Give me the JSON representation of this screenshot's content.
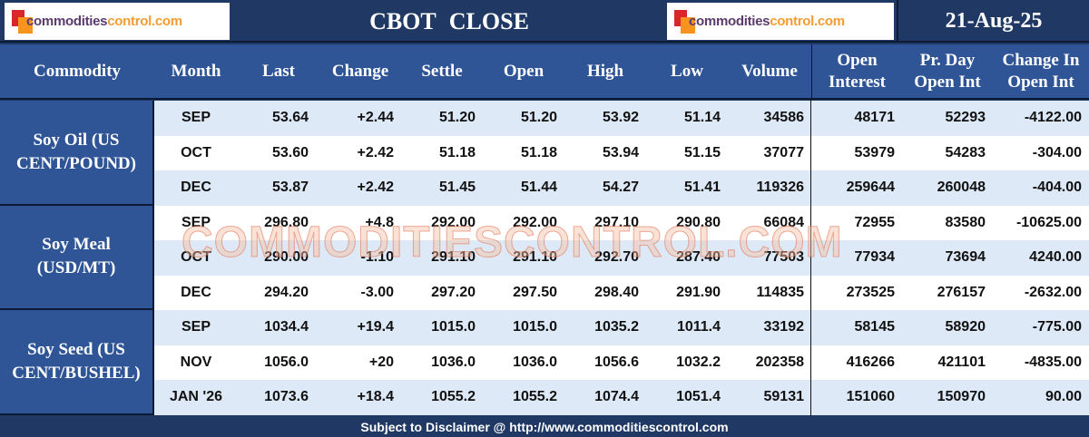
{
  "header": {
    "logo_text_a": "commodities",
    "logo_text_b": "control.com",
    "title": "CBOT  CLOSE",
    "date": "21-Aug-25"
  },
  "columns": [
    "Commodity",
    "Month",
    "Last",
    "Change",
    "Settle",
    "Open",
    "High",
    "Low",
    "Volume",
    "Open Interest",
    "Pr. Day Open Int",
    "Change In Open Int"
  ],
  "groups": [
    {
      "name": "Soy Oil (US CENT/POUND)",
      "rows": [
        [
          "SEP",
          "53.64",
          "+2.44",
          "51.20",
          "51.20",
          "53.92",
          "51.14",
          "34586",
          "48171",
          "52293",
          "-4122.00"
        ],
        [
          "OCT",
          "53.60",
          "+2.42",
          "51.18",
          "51.18",
          "53.94",
          "51.15",
          "37077",
          "53979",
          "54283",
          "-304.00"
        ],
        [
          "DEC",
          "53.87",
          "+2.42",
          "51.45",
          "51.44",
          "54.27",
          "51.41",
          "119326",
          "259644",
          "260048",
          "-404.00"
        ]
      ]
    },
    {
      "name": "Soy Meal (USD/MT)",
      "rows": [
        [
          "SEP",
          "296.80",
          "+4.8",
          "292.00",
          "292.00",
          "297.10",
          "290.80",
          "66084",
          "72955",
          "83580",
          "-10625.00"
        ],
        [
          "OCT",
          "290.00",
          "-1.10",
          "291.10",
          "291.10",
          "292.70",
          "287.40",
          "77503",
          "77934",
          "73694",
          "4240.00"
        ],
        [
          "DEC",
          "294.20",
          "-3.00",
          "297.20",
          "297.50",
          "298.40",
          "291.90",
          "114835",
          "273525",
          "276157",
          "-2632.00"
        ]
      ]
    },
    {
      "name": "Soy Seed (US CENT/BUSHEL)",
      "rows": [
        [
          "SEP",
          "1034.4",
          "+19.4",
          "1015.0",
          "1015.0",
          "1035.2",
          "1011.4",
          "33192",
          "58145",
          "58920",
          "-775.00"
        ],
        [
          "NOV",
          "1056.0",
          "+20",
          "1036.0",
          "1036.0",
          "1056.6",
          "1032.2",
          "202358",
          "416266",
          "421101",
          "-4835.00"
        ],
        [
          "JAN '26",
          "1073.6",
          "+18.4",
          "1055.2",
          "1055.2",
          "1074.4",
          "1051.4",
          "59131",
          "151060",
          "150970",
          "90.00"
        ]
      ]
    }
  ],
  "watermark": "COMMODITIESCONTROL.COM",
  "footer": "Subject to Disclaimer @  http://www.commoditiescontrol.com",
  "colors": {
    "navy": "#1f3864",
    "header_blue": "#2f5597",
    "row_alt": "#dde9f6"
  }
}
